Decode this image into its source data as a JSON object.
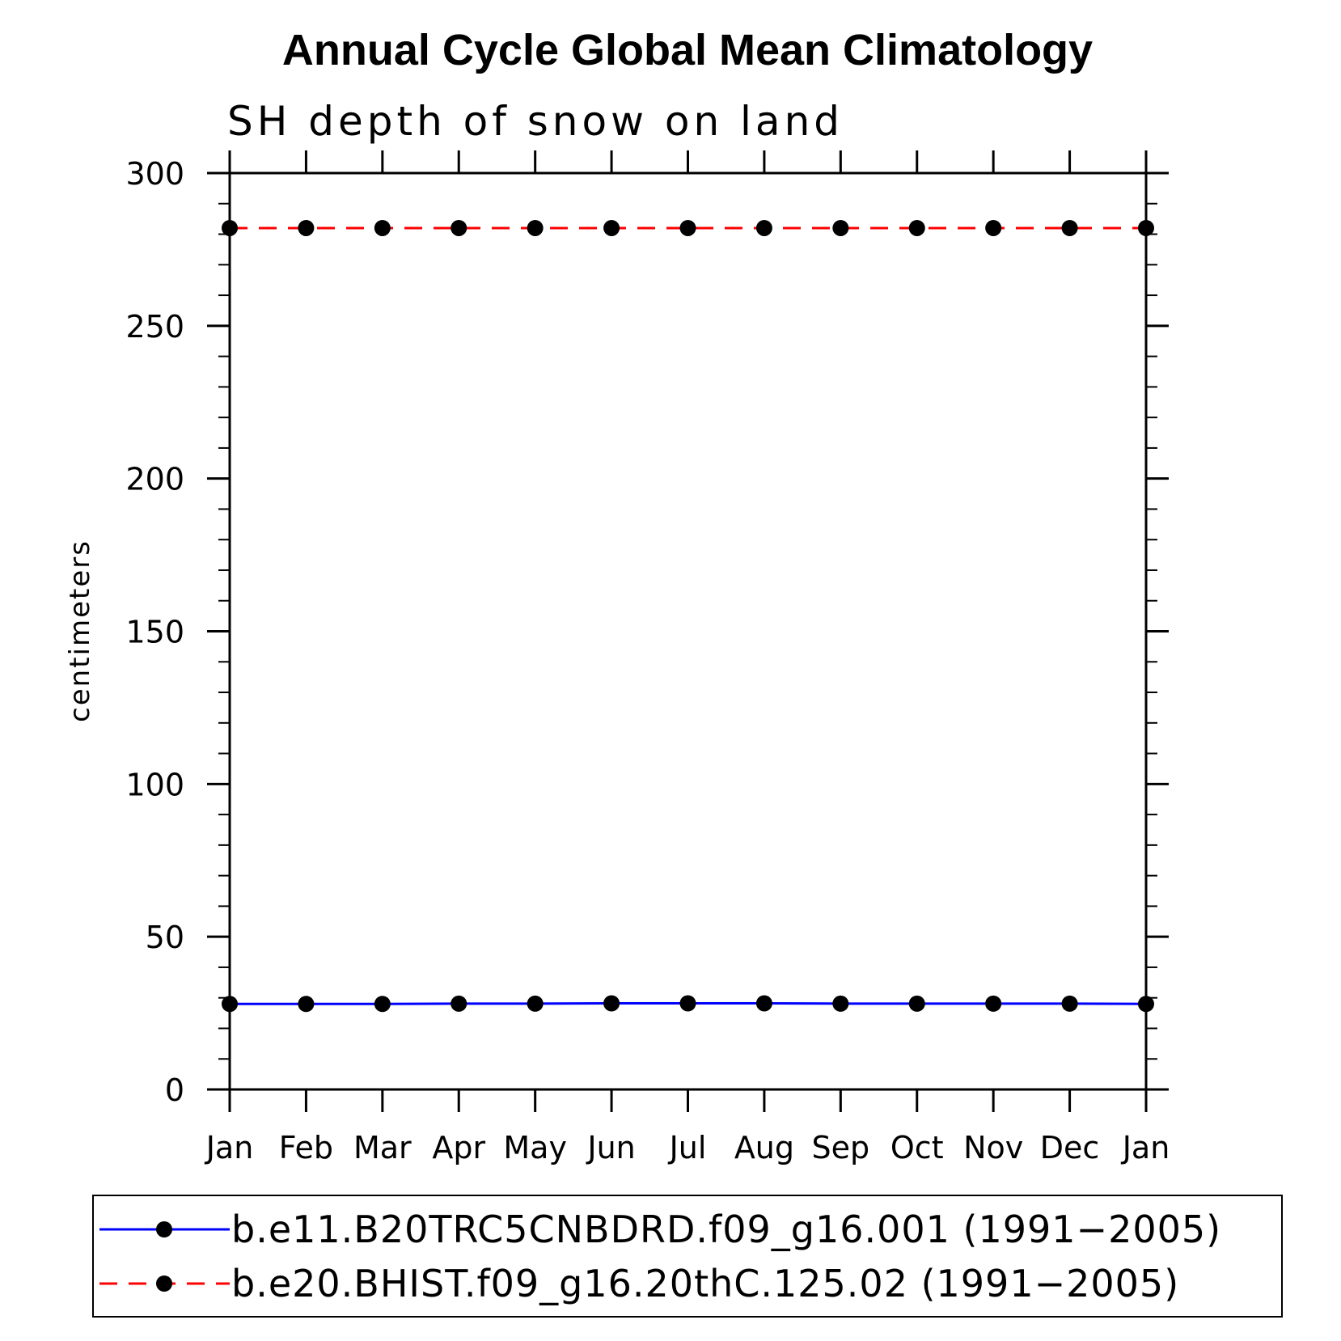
{
  "chart_data": {
    "type": "line",
    "title": "Annual Cycle Global Mean Climatology",
    "subtitle": "SH depth of snow on land",
    "xlabel": "",
    "ylabel": "centimeters",
    "categories": [
      "Jan",
      "Feb",
      "Mar",
      "Apr",
      "May",
      "Jun",
      "Jul",
      "Aug",
      "Sep",
      "Oct",
      "Nov",
      "Dec",
      "Jan"
    ],
    "ylim": [
      0,
      300
    ],
    "yticks": [
      0,
      50,
      100,
      150,
      200,
      250,
      300
    ],
    "ytick_labels": [
      "0",
      "50",
      "100",
      "150",
      "200",
      "250",
      "300"
    ],
    "series": [
      {
        "name": "b.e11.B20TRC5CNBDRD.f09_g16.001 (1991−2005)",
        "color": "#0000ff",
        "style": "solid",
        "marker": "filled-circle",
        "values": [
          28,
          28,
          28,
          28.1,
          28.1,
          28.2,
          28.2,
          28.2,
          28.1,
          28.1,
          28.1,
          28.1,
          28
        ]
      },
      {
        "name": "b.e20.BHIST.f09_g16.20thC.125.02 (1991−2005)",
        "color": "#ff0000",
        "style": "dashed",
        "marker": "filled-circle",
        "values": [
          282,
          282,
          282,
          282,
          282,
          282,
          282,
          282,
          282,
          282,
          282,
          282,
          282
        ]
      }
    ],
    "legend_position": "bottom"
  }
}
